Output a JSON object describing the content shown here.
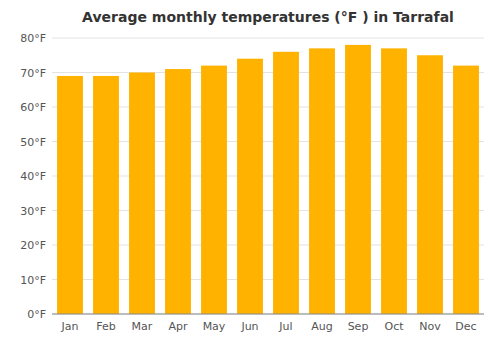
{
  "chart_data": {
    "type": "bar",
    "title": "Average monthly temperatures (°F ) in Tarrafal",
    "categories": [
      "Jan",
      "Feb",
      "Mar",
      "Apr",
      "May",
      "Jun",
      "Jul",
      "Aug",
      "Sep",
      "Oct",
      "Nov",
      "Dec"
    ],
    "values": [
      69,
      69,
      70,
      71,
      72,
      74,
      76,
      77,
      78,
      77,
      75,
      72
    ],
    "color": "#FFB300",
    "ylim": [
      0,
      80
    ],
    "yticks": [
      {
        "value": 0,
        "label": "0°F"
      },
      {
        "value": 10,
        "label": "10°F"
      },
      {
        "value": 20,
        "label": "20°F"
      },
      {
        "value": 30,
        "label": "30°F"
      },
      {
        "value": 40,
        "label": "40°F"
      },
      {
        "value": 50,
        "label": "50°F"
      },
      {
        "value": 60,
        "label": "60°F"
      },
      {
        "value": 70,
        "label": "70°F"
      },
      {
        "value": 80,
        "label": "80°F"
      }
    ],
    "grid": true
  }
}
